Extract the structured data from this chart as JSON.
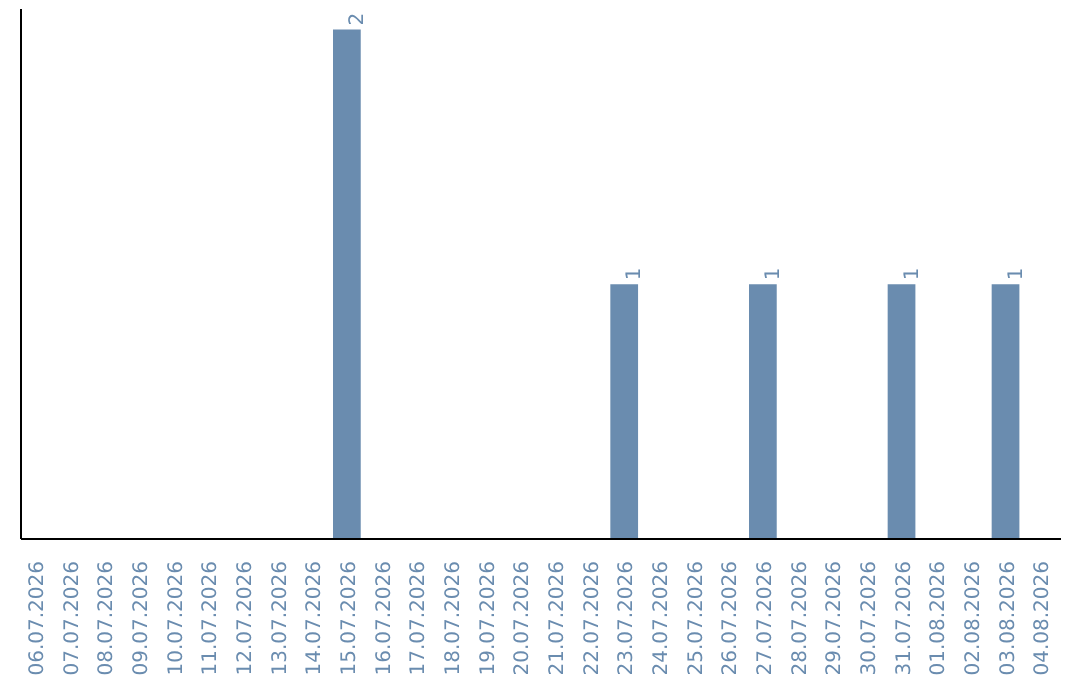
{
  "chart_data": {
    "type": "bar",
    "categories": [
      "06.07.2026",
      "07.07.2026",
      "08.07.2026",
      "09.07.2026",
      "10.07.2026",
      "11.07.2026",
      "12.07.2026",
      "13.07.2026",
      "14.07.2026",
      "15.07.2026",
      "16.07.2026",
      "17.07.2026",
      "18.07.2026",
      "19.07.2026",
      "20.07.2026",
      "21.07.2026",
      "22.07.2026",
      "23.07.2026",
      "24.07.2026",
      "25.07.2026",
      "26.07.2026",
      "27.07.2026",
      "28.07.2026",
      "29.07.2026",
      "30.07.2026",
      "31.07.2026",
      "01.08.2026",
      "02.08.2026",
      "03.08.2026",
      "04.08.2026"
    ],
    "values": [
      0,
      0,
      0,
      0,
      0,
      0,
      0,
      0,
      0,
      2,
      0,
      0,
      0,
      0,
      0,
      0,
      0,
      1,
      0,
      0,
      0,
      1,
      0,
      0,
      0,
      1,
      0,
      0,
      1,
      0
    ],
    "value_labels": [
      null,
      null,
      null,
      null,
      null,
      null,
      null,
      null,
      null,
      "2",
      null,
      null,
      null,
      null,
      null,
      null,
      null,
      "1",
      null,
      null,
      null,
      "1",
      null,
      null,
      null,
      "1",
      null,
      null,
      "1",
      null
    ],
    "color": "#6a8caf",
    "tick_labels": "x",
    "grid": false
  }
}
